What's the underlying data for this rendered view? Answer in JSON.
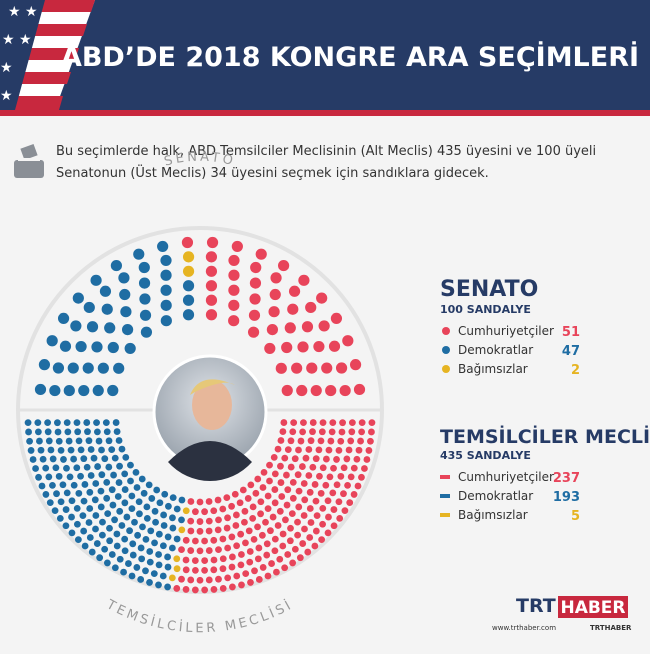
{
  "header": {
    "title": "ABD’DE 2018 KONGRE ARA SEÇİMLERİ"
  },
  "intro": {
    "line1": "Bu seçimlerde halk, ABD Temsilciler Meclisinin (Alt Meclis) 435 üyesini ve 100 üyeli",
    "line2": "Senatonun (Üst Meclis) 34 üyesini seçmek için sandıklara gidecek."
  },
  "senate": {
    "ring_label": "SENATO",
    "title": "SENATO",
    "subtitle": "100 SANDALYE",
    "parties": [
      {
        "name": "Cumhuriyetçiler",
        "color": "#e8445a",
        "seats": 51
      },
      {
        "name": "Demokratlar",
        "color": "#1f6da3",
        "seats": 47
      },
      {
        "name": "Bağımsızlar",
        "color": "#e6b422",
        "seats": 2
      }
    ]
  },
  "house": {
    "ring_label": "TEMSİLCİLER MECLİSİ",
    "title": "TEMSİLCİLER MECLİSİ",
    "subtitle": "435 SANDALYE",
    "parties": [
      {
        "name": "Cumhuriyetçiler",
        "color": "#e8445a",
        "seats": 237
      },
      {
        "name": "Demokratlar",
        "color": "#1f6da3",
        "seats": 193
      },
      {
        "name": "Bağımsızlar",
        "color": "#e6b422",
        "seats": 5
      }
    ]
  },
  "footer": {
    "logo_a": "TRT",
    "logo_b": "HABER",
    "site": "www.trthaber.com",
    "social": "TRTHABER"
  }
}
